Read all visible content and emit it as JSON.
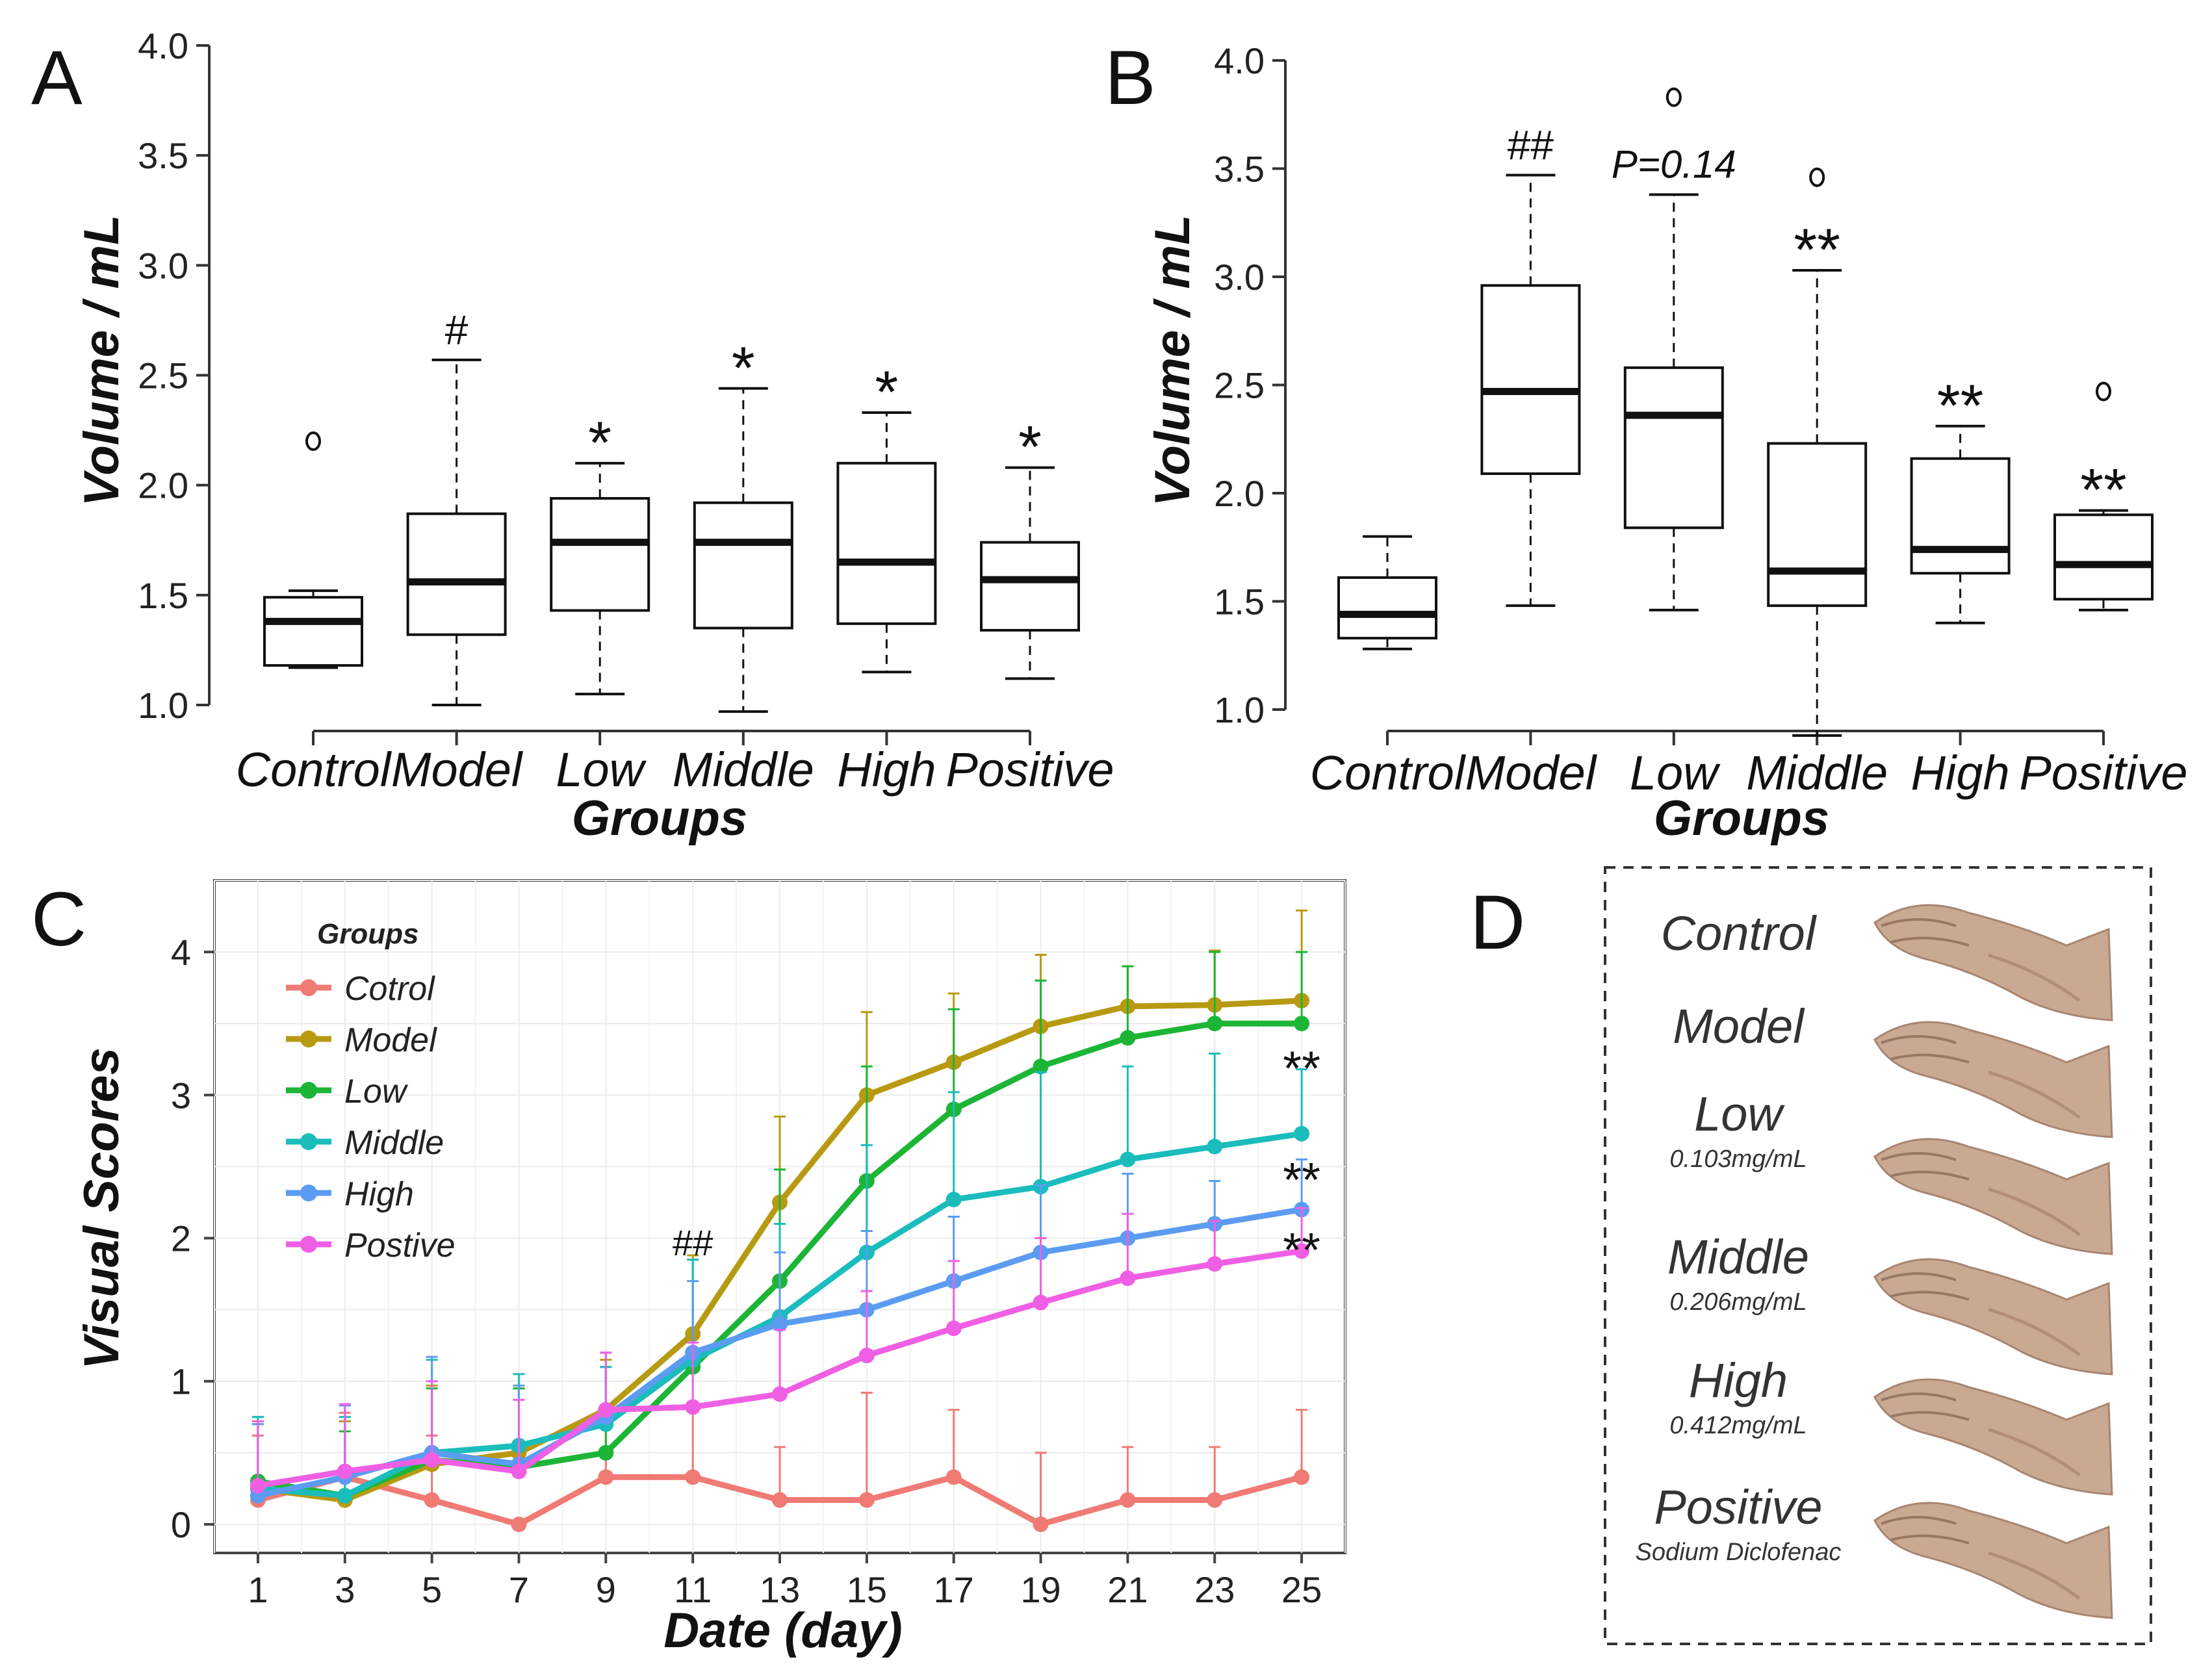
{
  "chart_data": [
    {
      "panel": "A",
      "type": "box",
      "xlabel": "Groups",
      "ylabel": "Volume / mL",
      "ylim": [
        1.0,
        4.0
      ],
      "yticks": [
        "1.0",
        "1.5",
        "2.0",
        "2.5",
        "3.0",
        "3.5",
        "4.0"
      ],
      "categories": [
        "Control",
        "Model",
        "Low",
        "Middle",
        "High",
        "Positive"
      ],
      "boxes": [
        {
          "min": 1.17,
          "q1": 1.18,
          "median": 1.38,
          "q3": 1.49,
          "max": 1.52,
          "outliers": [
            2.2
          ],
          "sig": ""
        },
        {
          "min": 1.0,
          "q1": 1.32,
          "median": 1.56,
          "q3": 1.87,
          "max": 2.57,
          "outliers": [],
          "sig": "#"
        },
        {
          "min": 1.05,
          "q1": 1.43,
          "median": 1.74,
          "q3": 1.94,
          "max": 2.1,
          "outliers": [],
          "sig": "*"
        },
        {
          "min": 0.97,
          "q1": 1.35,
          "median": 1.74,
          "q3": 1.92,
          "max": 2.44,
          "outliers": [],
          "sig": "*"
        },
        {
          "min": 1.15,
          "q1": 1.37,
          "median": 1.65,
          "q3": 2.1,
          "max": 2.33,
          "outliers": [],
          "sig": "*"
        },
        {
          "min": 1.12,
          "q1": 1.34,
          "median": 1.57,
          "q3": 1.74,
          "max": 2.08,
          "outliers": [],
          "sig": "*"
        }
      ]
    },
    {
      "panel": "B",
      "type": "box",
      "xlabel": "Groups",
      "ylabel": "Volume / mL",
      "ylim": [
        1.0,
        4.0
      ],
      "yticks": [
        "1.0",
        "1.5",
        "2.0",
        "2.5",
        "3.0",
        "3.5",
        "4.0"
      ],
      "categories": [
        "Control",
        "Model",
        "Low",
        "Middle",
        "High",
        "Positive"
      ],
      "boxes": [
        {
          "min": 1.28,
          "q1": 1.33,
          "median": 1.44,
          "q3": 1.61,
          "max": 1.8,
          "outliers": [],
          "sig": ""
        },
        {
          "min": 1.48,
          "q1": 2.09,
          "median": 2.47,
          "q3": 2.96,
          "max": 3.47,
          "outliers": [],
          "sig": "##"
        },
        {
          "min": 1.46,
          "q1": 1.84,
          "median": 2.36,
          "q3": 2.58,
          "max": 3.38,
          "outliers": [
            3.83
          ],
          "sig": "P=0.14"
        },
        {
          "min": 0.88,
          "q1": 1.48,
          "median": 1.64,
          "q3": 2.23,
          "max": 3.03,
          "outliers": [
            3.46
          ],
          "sig": "**"
        },
        {
          "min": 1.4,
          "q1": 1.63,
          "median": 1.74,
          "q3": 2.16,
          "max": 2.31,
          "outliers": [],
          "sig": "**"
        },
        {
          "min": 1.46,
          "q1": 1.51,
          "median": 1.67,
          "q3": 1.9,
          "max": 1.92,
          "outliers": [
            2.47
          ],
          "sig": "**"
        }
      ]
    },
    {
      "panel": "C",
      "type": "line",
      "xlabel": "Date (day)",
      "ylabel": "Visual Scores",
      "x": [
        1,
        3,
        5,
        7,
        9,
        11,
        13,
        15,
        17,
        19,
        21,
        23,
        25
      ],
      "xlim": [
        0,
        26
      ],
      "ylim": [
        -0.2,
        4.5
      ],
      "yticks": [
        0,
        1,
        2,
        3,
        4
      ],
      "legend_title": "Groups",
      "annotations": [
        {
          "text": "##",
          "x": 11,
          "y": 1.88
        },
        {
          "text": "**",
          "x": 25,
          "y": 3.2
        },
        {
          "text": "**",
          "x": 25,
          "y": 2.42
        },
        {
          "text": "**",
          "x": 25,
          "y": 1.93
        }
      ],
      "series": [
        {
          "name": "Cotrol",
          "color": "#f07a74",
          "values": [
            0.17,
            0.33,
            0.17,
            0.0,
            0.33,
            0.33,
            0.17,
            0.17,
            0.33,
            0.0,
            0.17,
            0.17,
            0.33
          ],
          "err": [
            0.45,
            0.45,
            0.45,
            0.0,
            0.5,
            0.5,
            0.37,
            0.75,
            0.47,
            0.5,
            0.37,
            0.37,
            0.47
          ]
        },
        {
          "name": "Model",
          "color": "#b89a12",
          "values": [
            0.25,
            0.17,
            0.42,
            0.5,
            0.8,
            1.33,
            2.25,
            3.0,
            3.23,
            3.48,
            3.62,
            3.63,
            3.66
          ],
          "err": [
            0.45,
            0.55,
            0.55,
            0.45,
            0.35,
            0.55,
            0.6,
            0.58,
            0.48,
            0.5,
            0.28,
            0.38,
            0.63
          ]
        },
        {
          "name": "Low",
          "color": "#1db536",
          "values": [
            0.3,
            0.2,
            0.45,
            0.4,
            0.5,
            1.1,
            1.7,
            2.4,
            2.9,
            3.2,
            3.4,
            3.5,
            3.5
          ],
          "err": [
            0.45,
            0.45,
            0.5,
            0.55,
            0.6,
            0.75,
            0.78,
            0.8,
            0.7,
            0.6,
            0.5,
            0.5,
            0.5
          ]
        },
        {
          "name": "Middle",
          "color": "#1bbcbc",
          "values": [
            0.25,
            0.2,
            0.5,
            0.55,
            0.7,
            1.15,
            1.45,
            1.9,
            2.27,
            2.36,
            2.55,
            2.64,
            2.73
          ],
          "err": [
            0.5,
            0.55,
            0.65,
            0.5,
            0.4,
            0.7,
            0.65,
            0.75,
            0.75,
            0.8,
            0.65,
            0.65,
            0.45
          ]
        },
        {
          "name": "High",
          "color": "#5b9cf2",
          "values": [
            0.2,
            0.33,
            0.5,
            0.42,
            0.75,
            1.2,
            1.4,
            1.5,
            1.7,
            1.9,
            2.0,
            2.1,
            2.2
          ],
          "err": [
            0.5,
            0.5,
            0.67,
            0.55,
            0.45,
            0.5,
            0.5,
            0.55,
            0.45,
            0.47,
            0.45,
            0.3,
            0.35
          ]
        },
        {
          "name": "Postive",
          "color": "#ef5fe3",
          "values": [
            0.27,
            0.37,
            0.45,
            0.37,
            0.8,
            0.82,
            0.91,
            1.18,
            1.37,
            1.55,
            1.72,
            1.82,
            1.91
          ],
          "err": [
            0.45,
            0.47,
            0.55,
            0.5,
            0.4,
            0.45,
            0.45,
            0.45,
            0.47,
            0.45,
            0.45,
            0.3,
            0.3
          ]
        }
      ]
    }
  ],
  "panel_a": {
    "letter": "A"
  },
  "panel_b": {
    "letter": "B"
  },
  "panel_c": {
    "letter": "C"
  },
  "panel_d": {
    "letter": "D",
    "rows": [
      {
        "name": "Control",
        "sub": ""
      },
      {
        "name": "Model",
        "sub": ""
      },
      {
        "name": "Low",
        "sub": "0.103mg/mL"
      },
      {
        "name": "Middle",
        "sub": "0.206mg/mL"
      },
      {
        "name": "High",
        "sub": "0.412mg/mL"
      },
      {
        "name": "Positive",
        "sub": "Sodium Diclofenac"
      }
    ]
  }
}
